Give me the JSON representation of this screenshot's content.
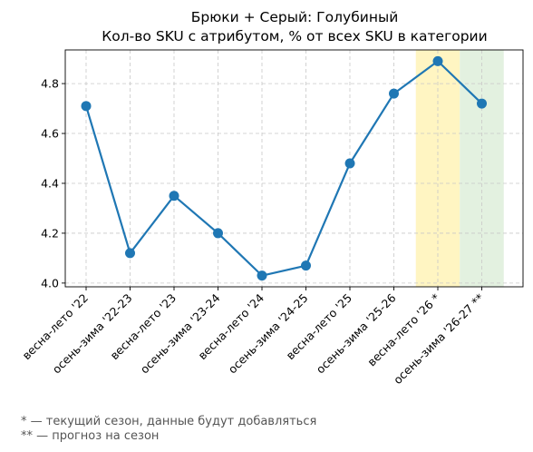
{
  "chart_data": {
    "type": "line",
    "title": "Брюки + Серый: Голубиный",
    "subtitle": "Кол-во SKU с атрибутом, % от всех SKU в категории",
    "xlabel": "",
    "ylabel": "",
    "categories": [
      "весна-лето '22",
      "осень-зима '22-23",
      "весна-лето '23",
      "осень-зима '23-24",
      "весна-лето '24",
      "осень-зима '24-25",
      "весна-лето '25",
      "осень-зима '25-26",
      "весна-лето '26 *",
      "осень-зима '26-27 **"
    ],
    "series": [
      {
        "values": [
          4.71,
          4.12,
          4.35,
          4.2,
          4.03,
          4.07,
          4.48,
          4.76,
          4.89,
          4.72
        ]
      }
    ],
    "ylim": [
      3.985,
      4.935
    ],
    "yticks": [
      4.0,
      4.2,
      4.4,
      4.6,
      4.8
    ],
    "ytick_labels": [
      "4.0",
      "4.2",
      "4.4",
      "4.6",
      "4.8"
    ],
    "grid": true,
    "line_color": "#1f77b4",
    "highlight_bands": [
      {
        "category_index": 8,
        "color": "#fff5c2",
        "meaning": "current season"
      },
      {
        "category_index": 9,
        "color": "#e3f1e0",
        "meaning": "forecast"
      }
    ]
  },
  "footnotes": {
    "current": "* — текущий сезон, данные будут добавляться",
    "forecast": "** — прогноз на сезон"
  }
}
